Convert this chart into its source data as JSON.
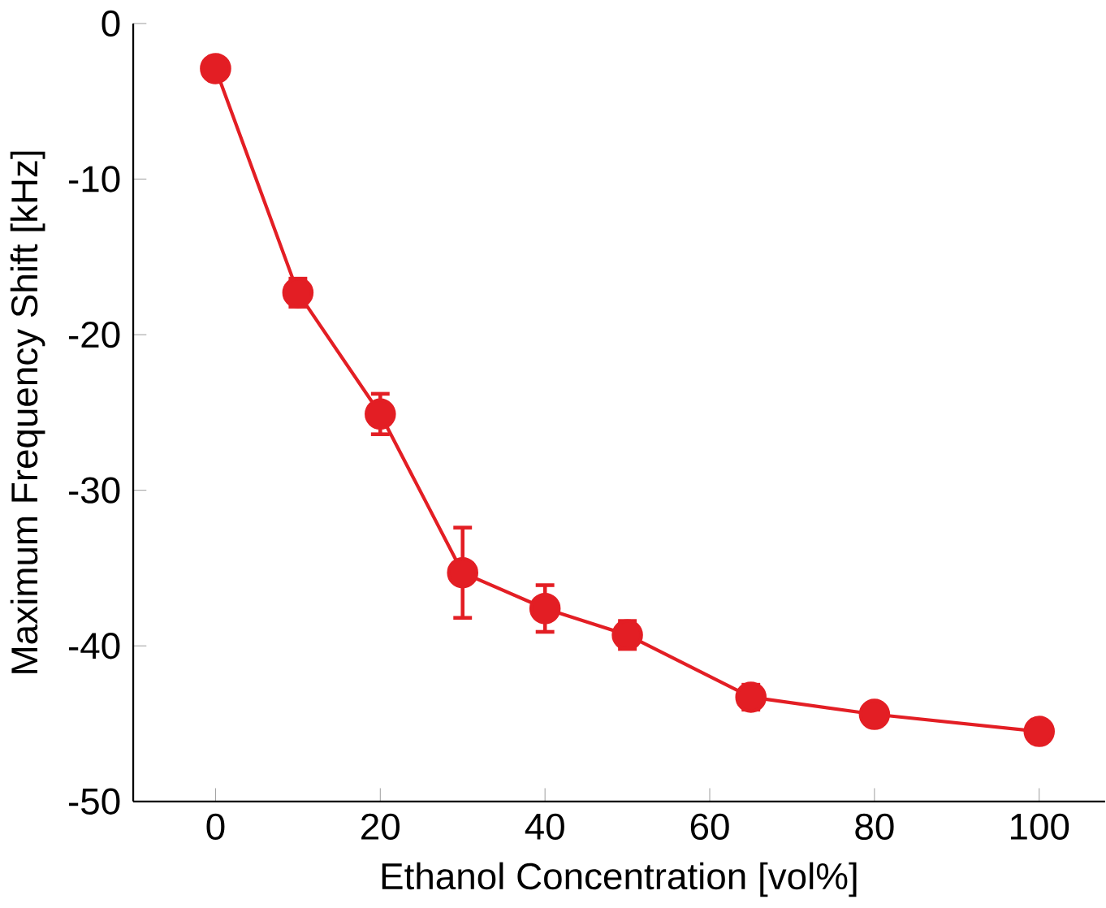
{
  "chart_data": {
    "type": "line",
    "xlabel": "Ethanol Concentration [vol%]",
    "ylabel": "Maximum Frequency Shift [kHz]",
    "x": [
      0,
      10,
      20,
      30,
      40,
      50,
      65,
      80,
      100
    ],
    "series": [
      {
        "color": "#e31e24",
        "values": [
          -2.9,
          -17.3,
          -25.1,
          -35.3,
          -37.6,
          -39.3,
          -43.3,
          -44.4,
          -45.5
        ],
        "errors": [
          0.3,
          0.9,
          1.3,
          2.9,
          1.5,
          0.9,
          0.8,
          0.4,
          0.3
        ]
      }
    ],
    "xlim": [
      -10,
      108
    ],
    "ylim": [
      -50,
      0
    ],
    "xticks": [
      0,
      20,
      40,
      60,
      80,
      100
    ],
    "yticks": [
      -50,
      -40,
      -30,
      -20,
      -10,
      0
    ],
    "marker": "circle",
    "line_style": "solid"
  }
}
